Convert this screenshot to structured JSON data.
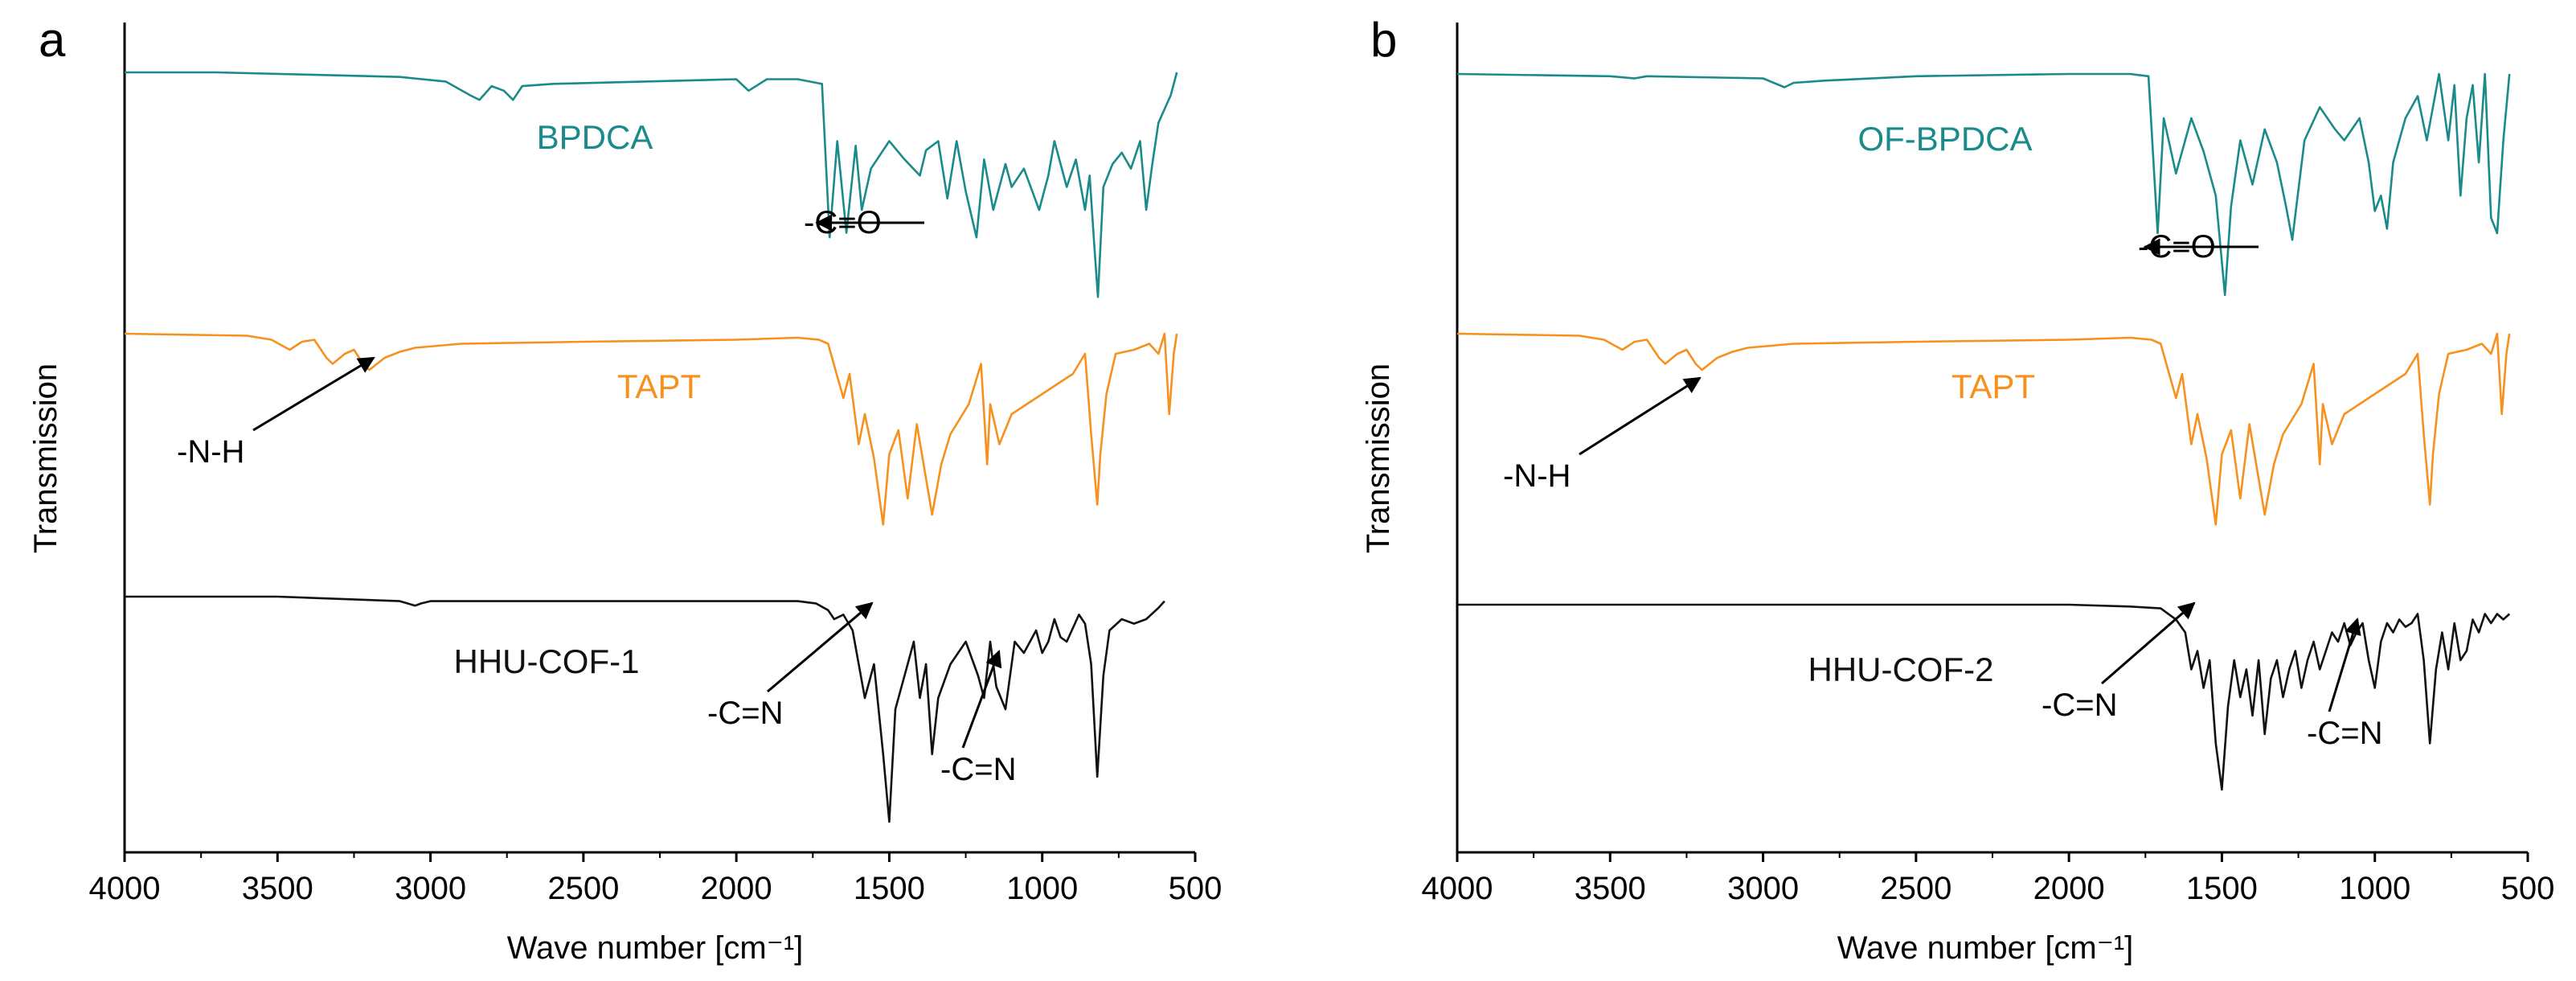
{
  "chart_data": [
    {
      "panel": "a",
      "type": "line",
      "xlabel": "Wave number [cm⁻¹]",
      "ylabel": "Transmission",
      "xlim": [
        4000,
        500
      ],
      "xticks": [
        4000,
        3500,
        3000,
        2500,
        2000,
        1500,
        1000,
        500
      ],
      "series": [
        {
          "name": "BPDCA",
          "color": "#1a8a8a",
          "x": [
            4000,
            3700,
            3400,
            3100,
            2950,
            2870,
            2840,
            2800,
            2760,
            2730,
            2700,
            2600,
            2300,
            2000,
            1960,
            1900,
            1800,
            1720,
            1695,
            1670,
            1640,
            1610,
            1590,
            1560,
            1500,
            1450,
            1400,
            1380,
            1340,
            1310,
            1280,
            1250,
            1215,
            1190,
            1160,
            1120,
            1100,
            1060,
            1010,
            980,
            960,
            920,
            890,
            860,
            845,
            830,
            818,
            800,
            770,
            740,
            710,
            680,
            660,
            640,
            620,
            580,
            560
          ],
          "y": [
            0.0,
            0.0,
            0.01,
            0.02,
            0.04,
            0.1,
            0.12,
            0.06,
            0.08,
            0.12,
            0.06,
            0.05,
            0.04,
            0.03,
            0.08,
            0.03,
            0.03,
            0.05,
            0.72,
            0.3,
            0.7,
            0.32,
            0.6,
            0.42,
            0.3,
            0.38,
            0.45,
            0.34,
            0.3,
            0.55,
            0.3,
            0.52,
            0.72,
            0.38,
            0.6,
            0.4,
            0.5,
            0.42,
            0.6,
            0.45,
            0.3,
            0.5,
            0.38,
            0.6,
            0.45,
            0.75,
            0.98,
            0.5,
            0.4,
            0.35,
            0.42,
            0.3,
            0.6,
            0.4,
            0.22,
            0.1,
            0.0
          ]
        },
        {
          "name": "TAPT",
          "color": "#f7911e",
          "x": [
            4000,
            3600,
            3520,
            3460,
            3420,
            3380,
            3340,
            3320,
            3280,
            3250,
            3220,
            3200,
            3150,
            3100,
            3050,
            2900,
            2500,
            2000,
            1800,
            1730,
            1700,
            1650,
            1630,
            1600,
            1580,
            1550,
            1520,
            1500,
            1470,
            1440,
            1410,
            1380,
            1360,
            1330,
            1300,
            1240,
            1200,
            1180,
            1170,
            1140,
            1100,
            1050,
            1000,
            950,
            900,
            860,
            840,
            820,
            810,
            790,
            760,
            700,
            650,
            620,
            600,
            585,
            570,
            560
          ],
          "y": [
            0.0,
            0.01,
            0.03,
            0.08,
            0.04,
            0.03,
            0.12,
            0.15,
            0.1,
            0.08,
            0.15,
            0.18,
            0.12,
            0.09,
            0.07,
            0.05,
            0.04,
            0.03,
            0.02,
            0.03,
            0.05,
            0.32,
            0.2,
            0.55,
            0.4,
            0.62,
            0.95,
            0.6,
            0.48,
            0.82,
            0.45,
            0.72,
            0.9,
            0.65,
            0.5,
            0.35,
            0.15,
            0.65,
            0.35,
            0.55,
            0.4,
            0.35,
            0.3,
            0.25,
            0.2,
            0.1,
            0.5,
            0.85,
            0.6,
            0.3,
            0.1,
            0.08,
            0.05,
            0.1,
            0.0,
            0.4,
            0.1,
            0.0
          ]
        },
        {
          "name": "HHU-COF-1",
          "color": "#111111",
          "x": [
            4000,
            3500,
            3100,
            3050,
            3030,
            3000,
            2500,
            2000,
            1800,
            1740,
            1700,
            1680,
            1650,
            1620,
            1600,
            1580,
            1550,
            1520,
            1500,
            1480,
            1440,
            1420,
            1400,
            1380,
            1360,
            1340,
            1300,
            1250,
            1210,
            1190,
            1170,
            1150,
            1120,
            1090,
            1060,
            1020,
            1000,
            980,
            960,
            940,
            920,
            880,
            860,
            840,
            820,
            800,
            780,
            740,
            700,
            660,
            620,
            600
          ],
          "y": [
            0.0,
            0.0,
            0.02,
            0.04,
            0.03,
            0.02,
            0.02,
            0.02,
            0.02,
            0.03,
            0.06,
            0.1,
            0.08,
            0.15,
            0.3,
            0.45,
            0.3,
            0.7,
            1.0,
            0.5,
            0.3,
            0.2,
            0.45,
            0.3,
            0.7,
            0.45,
            0.3,
            0.2,
            0.35,
            0.45,
            0.2,
            0.4,
            0.5,
            0.2,
            0.25,
            0.15,
            0.25,
            0.2,
            0.1,
            0.18,
            0.2,
            0.08,
            0.12,
            0.3,
            0.8,
            0.35,
            0.15,
            0.1,
            0.12,
            0.1,
            0.05,
            0.02
          ]
        }
      ],
      "annotations": [
        {
          "text": "-C=O",
          "target_x": 1700,
          "series": "BPDCA"
        },
        {
          "text": "-N-H",
          "target_x": 3300,
          "series": "TAPT"
        },
        {
          "text": "-C=N",
          "target_x": 1630,
          "series": "HHU-COF-1"
        },
        {
          "text": "-C=N",
          "target_x": 1175,
          "series": "HHU-COF-1"
        }
      ]
    },
    {
      "panel": "b",
      "type": "line",
      "xlabel": "Wave number [cm⁻¹]",
      "ylabel": "Transmission",
      "xlim": [
        4000,
        500
      ],
      "xticks": [
        4000,
        3500,
        3000,
        2500,
        2000,
        1500,
        1000,
        500
      ],
      "series": [
        {
          "name": "OF-BPDCA",
          "color": "#1a8a8a",
          "x": [
            4000,
            3500,
            3420,
            3380,
            3000,
            2930,
            2900,
            2800,
            2500,
            2000,
            1800,
            1740,
            1710,
            1690,
            1650,
            1600,
            1560,
            1520,
            1490,
            1470,
            1440,
            1400,
            1360,
            1320,
            1290,
            1270,
            1230,
            1180,
            1130,
            1100,
            1050,
            1020,
            1000,
            980,
            960,
            940,
            900,
            860,
            830,
            810,
            790,
            760,
            740,
            720,
            700,
            680,
            660,
            640,
            620,
            600,
            580,
            560
          ],
          "y": [
            0.0,
            0.01,
            0.02,
            0.01,
            0.02,
            0.06,
            0.04,
            0.03,
            0.01,
            0.0,
            0.0,
            0.01,
            0.72,
            0.2,
            0.45,
            0.2,
            0.35,
            0.55,
            1.0,
            0.6,
            0.3,
            0.5,
            0.25,
            0.4,
            0.6,
            0.75,
            0.3,
            0.15,
            0.25,
            0.3,
            0.2,
            0.4,
            0.62,
            0.55,
            0.7,
            0.4,
            0.2,
            0.1,
            0.3,
            0.15,
            0.0,
            0.3,
            0.05,
            0.55,
            0.2,
            0.05,
            0.4,
            0.0,
            0.65,
            0.72,
            0.3,
            0.0
          ]
        },
        {
          "name": "TAPT",
          "color": "#f7911e",
          "x": [
            4000,
            3600,
            3520,
            3460,
            3420,
            3380,
            3340,
            3320,
            3280,
            3250,
            3220,
            3200,
            3150,
            3100,
            3050,
            2900,
            2500,
            2000,
            1800,
            1730,
            1700,
            1650,
            1630,
            1600,
            1580,
            1550,
            1520,
            1500,
            1470,
            1440,
            1410,
            1380,
            1360,
            1330,
            1300,
            1240,
            1200,
            1180,
            1170,
            1140,
            1100,
            1050,
            1000,
            950,
            900,
            860,
            840,
            820,
            810,
            790,
            760,
            700,
            650,
            620,
            600,
            585,
            570,
            560
          ],
          "y": [
            0.0,
            0.01,
            0.03,
            0.08,
            0.04,
            0.03,
            0.12,
            0.15,
            0.1,
            0.08,
            0.15,
            0.18,
            0.12,
            0.09,
            0.07,
            0.05,
            0.04,
            0.03,
            0.02,
            0.03,
            0.05,
            0.32,
            0.2,
            0.55,
            0.4,
            0.62,
            0.95,
            0.6,
            0.48,
            0.82,
            0.45,
            0.72,
            0.9,
            0.65,
            0.5,
            0.35,
            0.15,
            0.65,
            0.35,
            0.55,
            0.4,
            0.35,
            0.3,
            0.25,
            0.2,
            0.1,
            0.5,
            0.85,
            0.6,
            0.3,
            0.1,
            0.08,
            0.05,
            0.1,
            0.0,
            0.4,
            0.1,
            0.0
          ]
        },
        {
          "name": "HHU-COF-2",
          "color": "#111111",
          "x": [
            4000,
            3500,
            3000,
            2500,
            2000,
            1800,
            1700,
            1650,
            1620,
            1600,
            1580,
            1560,
            1540,
            1520,
            1500,
            1480,
            1460,
            1440,
            1420,
            1400,
            1380,
            1360,
            1340,
            1320,
            1300,
            1280,
            1260,
            1240,
            1220,
            1200,
            1180,
            1160,
            1140,
            1120,
            1100,
            1080,
            1060,
            1040,
            1020,
            1000,
            980,
            960,
            940,
            920,
            900,
            880,
            860,
            840,
            820,
            800,
            780,
            760,
            740,
            720,
            700,
            680,
            660,
            640,
            620,
            600,
            580,
            560
          ],
          "y": [
            0.0,
            0.0,
            0.0,
            0.0,
            0.0,
            0.01,
            0.02,
            0.08,
            0.15,
            0.35,
            0.25,
            0.45,
            0.3,
            0.75,
            1.0,
            0.55,
            0.3,
            0.5,
            0.35,
            0.6,
            0.3,
            0.7,
            0.4,
            0.3,
            0.5,
            0.35,
            0.25,
            0.45,
            0.3,
            0.2,
            0.35,
            0.25,
            0.15,
            0.2,
            0.1,
            0.22,
            0.15,
            0.1,
            0.3,
            0.45,
            0.2,
            0.1,
            0.15,
            0.08,
            0.12,
            0.1,
            0.05,
            0.3,
            0.75,
            0.35,
            0.15,
            0.35,
            0.1,
            0.3,
            0.25,
            0.08,
            0.15,
            0.05,
            0.1,
            0.05,
            0.08,
            0.05
          ]
        }
      ],
      "annotations": [
        {
          "text": "-C=O",
          "target_x": 1715,
          "series": "OF-BPDCA"
        },
        {
          "text": "-N-H",
          "target_x": 3300,
          "series": "TAPT"
        },
        {
          "text": "-C=N",
          "target_x": 1600,
          "series": "HHU-COF-2"
        },
        {
          "text": "-C=N",
          "target_x": 1200,
          "series": "HHU-COF-2"
        }
      ]
    }
  ]
}
